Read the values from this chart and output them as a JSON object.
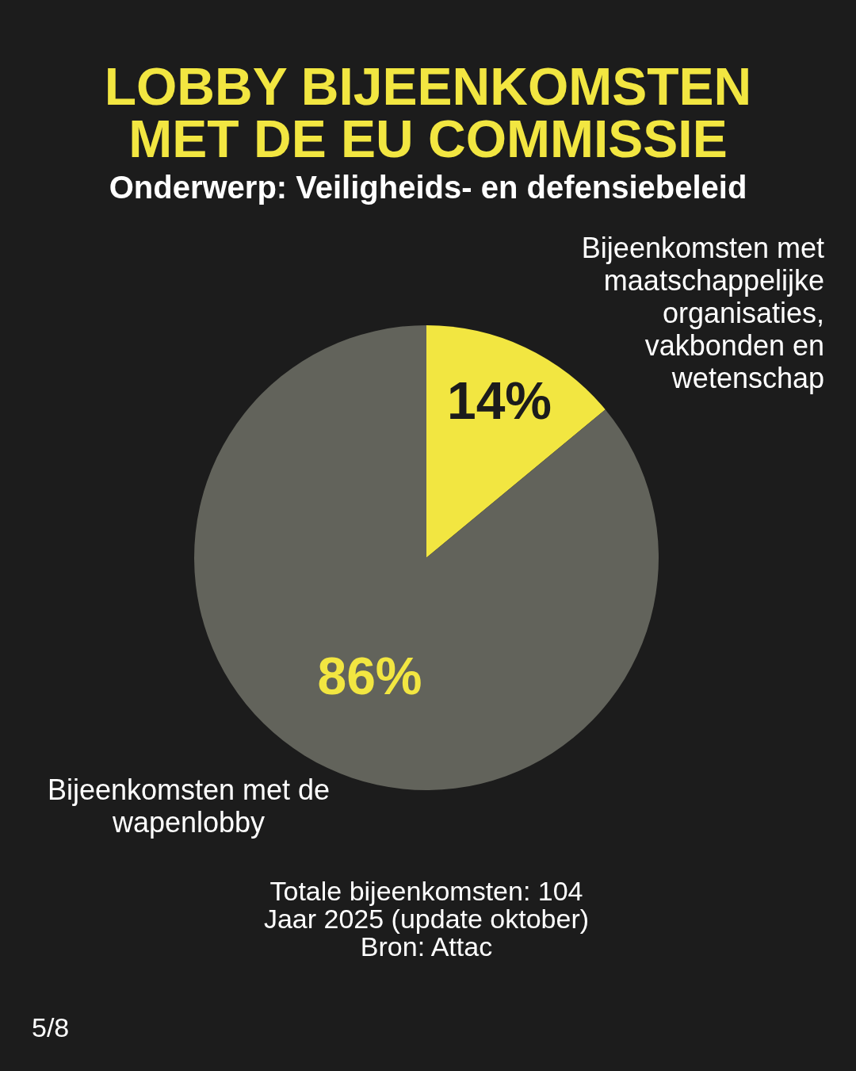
{
  "chart_data": {
    "type": "pie",
    "title": "LOBBY BIJEENKOMSTEN MET DE EU COMMISSIE",
    "subtitle": "Onderwerp: Veiligheids- en defensiebeleid",
    "categories": [
      "Bijeenkomsten met maatschappelijke organisaties, vakbonden en wetenschap",
      "Bijeenkomsten met de wapenlobby"
    ],
    "values": [
      14,
      86
    ],
    "value_labels": [
      "14%",
      "86%"
    ],
    "colors": [
      "#f2e641",
      "#62635b"
    ],
    "annotations": [
      "Totale bijeenkomsten: 104",
      "Jaar 2025 (update oktober)",
      "Bron: Attac",
      "5/8"
    ]
  }
}
